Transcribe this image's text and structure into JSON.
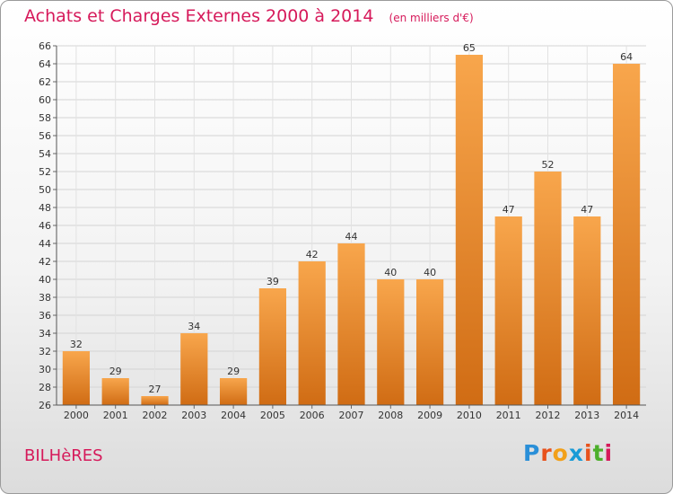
{
  "header": {
    "title": "Achats et Charges Externes 2000 à 2014",
    "unit": "(en milliers d'€)"
  },
  "footer": {
    "commune": "BILHèRES",
    "brand": {
      "letters": [
        "P",
        "r",
        "o",
        "x",
        "i",
        "t",
        "i"
      ],
      "colors": [
        "#2a8fd8",
        "#e8521c",
        "#f2a019",
        "#1a9bd6",
        "#e8521c",
        "#4caf2a",
        "#d6195a"
      ]
    }
  },
  "chart_data": {
    "type": "bar",
    "categories": [
      "2000",
      "2001",
      "2002",
      "2003",
      "2004",
      "2005",
      "2006",
      "2007",
      "2008",
      "2009",
      "2010",
      "2011",
      "2012",
      "2013",
      "2014"
    ],
    "values": [
      32,
      29,
      27,
      34,
      29,
      39,
      42,
      44,
      40,
      40,
      65,
      47,
      52,
      47,
      64
    ],
    "ylim": [
      26,
      66
    ],
    "ytick_step": 2,
    "grid": true,
    "bar_color_top": "#f8a64c",
    "bar_color_bottom": "#d06c14"
  }
}
